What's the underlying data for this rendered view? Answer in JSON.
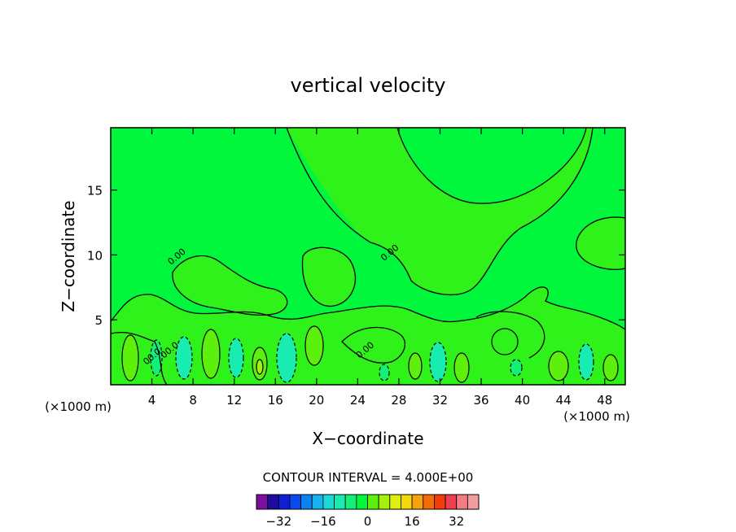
{
  "chart_data": {
    "type": "heatmap",
    "title": "vertical velocity",
    "xlabel": "X−coordinate",
    "ylabel": "Z−coordinate",
    "x_unit_label_left": "(×1000 m)",
    "x_unit_label_right": "(×1000 m)",
    "xlim": [
      0,
      50
    ],
    "ylim": [
      0,
      19.8
    ],
    "x_ticks": [
      4,
      8,
      12,
      16,
      20,
      24,
      28,
      32,
      36,
      40,
      44,
      48
    ],
    "x_tick_labels": [
      "4",
      "8",
      "12",
      "16",
      "20",
      "24",
      "28",
      "32",
      "36",
      "40",
      "44",
      "48"
    ],
    "y_ticks": [
      5,
      10,
      15
    ],
    "y_tick_labels": [
      "5",
      "10",
      "15"
    ],
    "contour_interval_text": "CONTOUR INTERVAL = 4.000E+00",
    "contour_interval": 4.0,
    "contour_line_labels": [
      {
        "text": "0.00",
        "x": 6.6,
        "y": 9.7
      },
      {
        "text": "0.00",
        "x": 27.3,
        "y": 10.0
      },
      {
        "text": "0.00",
        "x": 24.9,
        "y": 2.5
      },
      {
        "text": "00.0",
        "x": 4.2,
        "y": 2.0
      },
      {
        "text": "00.0",
        "x": 5.9,
        "y": 2.5
      }
    ],
    "colorbar": {
      "ticks": [
        -32,
        -16,
        0,
        16,
        32
      ],
      "tick_labels": [
        "−32",
        "−16",
        "0",
        "16",
        "32"
      ],
      "levels": [
        -36,
        -32,
        -28,
        -24,
        -20,
        -16,
        -12,
        -8,
        -4,
        0,
        4,
        8,
        12,
        16,
        20,
        24,
        28,
        32,
        36
      ],
      "colors": [
        "#7d0f9e",
        "#1d0a9e",
        "#0f1fd6",
        "#0b49f0",
        "#0c82f2",
        "#15b4ef",
        "#1ed8d8",
        "#19ecb0",
        "#13f07a",
        "#00f73c",
        "#5cf00c",
        "#a6f00d",
        "#dcf00f",
        "#f3d80e",
        "#f5a20c",
        "#f26d0a",
        "#f03d0b",
        "#ee3f50",
        "#f27d82",
        "#f59d9d"
      ]
    },
    "field_colors": {
      "near_zero": "#00f73c",
      "weak_positive": "#2ef21a",
      "positive": "#5cf00c",
      "weak_negative": "#13f07a",
      "negative": "#19ecb0"
    }
  }
}
